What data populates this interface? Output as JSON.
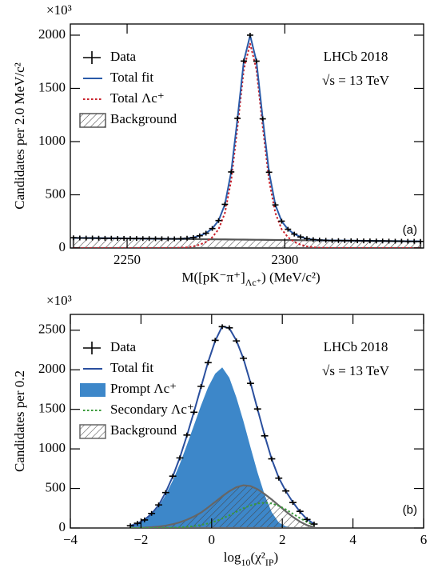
{
  "chart_data": [
    {
      "type": "line",
      "y_multiplier": "×10³",
      "ylabel": "Candidates per 2.0 MeV/c²",
      "xlabel": [
        {
          "text": "M([pK⁻π⁺]"
        },
        {
          "text": "Λc⁺",
          "shift": "sub"
        },
        {
          "text": ") (MeV/c²)"
        }
      ],
      "experiment_label": "LHCb 2018",
      "energy_label": "√s = 13 TeV",
      "panel_label": "(a)",
      "legend_position": "upper left",
      "xlim": [
        2232,
        2344
      ],
      "ylim": [
        0,
        2105
      ],
      "xticks": [
        2250,
        2300
      ],
      "yticks": [
        0,
        500,
        1000,
        1500,
        2000
      ],
      "x": [
        2233,
        2235,
        2237,
        2239,
        2241,
        2243,
        2245,
        2247,
        2249,
        2251,
        2253,
        2255,
        2257,
        2259,
        2261,
        2263,
        2265,
        2267,
        2269,
        2271,
        2273,
        2275,
        2277,
        2279,
        2281,
        2283,
        2285,
        2287,
        2289,
        2291,
        2293,
        2295,
        2297,
        2299,
        2301,
        2303,
        2305,
        2307,
        2309,
        2311,
        2313,
        2315,
        2317,
        2319,
        2321,
        2323,
        2325,
        2327,
        2329,
        2331,
        2333,
        2335,
        2337,
        2339,
        2341,
        2343
      ],
      "series": [
        {
          "name": "Data",
          "style": "points",
          "color": "#000000",
          "values": [
            96,
            94,
            93,
            94,
            92,
            91,
            92,
            90,
            90,
            89,
            89,
            88,
            88,
            87,
            87,
            86,
            86,
            88,
            92,
            98,
            115,
            139,
            183,
            258,
            410,
            715,
            1218,
            1757,
            2000,
            1756,
            1214,
            712,
            405,
            252,
            176,
            131,
            104,
            88,
            79,
            75,
            72,
            70,
            70,
            69,
            69,
            68,
            67,
            67,
            66,
            66,
            65,
            64,
            64,
            63,
            63,
            62
          ]
        },
        {
          "name": "Total fit",
          "style": "line",
          "color": "#2a5aa8",
          "values": [
            95,
            94.4,
            93.8,
            93.2,
            92.6,
            92,
            91.4,
            90.8,
            90.2,
            89.6,
            89,
            88.4,
            87.8,
            87.2,
            86.6,
            86,
            86.4,
            87.8,
            91.2,
            98.6,
            114,
            139.4,
            182.8,
            257.2,
            409.6,
            716,
            1217.4,
            1756.8,
            1998.2,
            1755.6,
            1215,
            712.4,
            404.8,
            251.2,
            175.6,
            131,
            104.4,
            87.8,
            79.2,
            74.6,
            72,
            70.4,
            69.8,
            69.2,
            68.6,
            68,
            67.4,
            66.8,
            66.2,
            65.6,
            65,
            64.4,
            63.8,
            63.2,
            62.6,
            62
          ]
        },
        {
          "name": "Total Λc⁺",
          "style": "dotted",
          "color": "#c8202a",
          "values": [
            0,
            0,
            0,
            0,
            0,
            0,
            0,
            0,
            0,
            0,
            0,
            0,
            0,
            0,
            0,
            0,
            1,
            3,
            7,
            15,
            31,
            57,
            101,
            176,
            329,
            636,
            1138,
            1678,
            1920,
            1678,
            1138,
            636,
            329,
            176,
            101,
            57,
            31,
            15,
            7,
            3,
            1,
            0,
            0,
            0,
            0,
            0,
            0,
            0,
            0,
            0,
            0,
            0,
            0,
            0,
            0,
            0
          ]
        },
        {
          "name": "Background",
          "style": "hatch",
          "color": "#555555",
          "values": [
            95,
            94.4,
            93.8,
            93.2,
            92.6,
            92,
            91.4,
            90.8,
            90.2,
            89.6,
            89,
            88.4,
            87.8,
            87.2,
            86.6,
            86,
            85.4,
            84.8,
            84.2,
            83.6,
            83,
            82.4,
            81.8,
            81.2,
            80.6,
            80,
            79.4,
            78.8,
            78.2,
            77.6,
            77,
            76.4,
            75.8,
            75.2,
            74.6,
            74,
            73.4,
            72.8,
            72.2,
            71.6,
            71,
            70.4,
            69.8,
            69.2,
            68.6,
            68,
            67.4,
            66.8,
            66.2,
            65.6,
            65,
            64.4,
            63.8,
            63.2,
            62.6,
            62
          ]
        }
      ]
    },
    {
      "type": "line",
      "y_multiplier": "×10³",
      "ylabel": "Candidates per 0.2",
      "xlabel": [
        {
          "text": "log"
        },
        {
          "text": "10",
          "shift": "sub"
        },
        {
          "text": "(χ²"
        },
        {
          "text": "IP",
          "shift": "sub"
        },
        {
          "text": ")"
        }
      ],
      "experiment_label": "LHCb 2018",
      "energy_label": "√s = 13 TeV",
      "panel_label": "(b)",
      "legend_position": "upper left",
      "xlim": [
        -4,
        6
      ],
      "ylim": [
        0,
        2700
      ],
      "xticks": [
        {
          "value": -4,
          "label": "−4"
        },
        {
          "value": -2,
          "label": "−2"
        },
        0,
        2,
        4,
        6
      ],
      "yticks": [
        0,
        500,
        1000,
        1500,
        2000,
        2500
      ],
      "x": [
        -2.3,
        -2.1,
        -1.9,
        -1.7,
        -1.5,
        -1.3,
        -1.1,
        -0.9,
        -0.7,
        -0.5,
        -0.3,
        -0.1,
        0.1,
        0.3,
        0.5,
        0.7,
        0.9,
        1.1,
        1.3,
        1.5,
        1.7,
        1.9,
        2.1,
        2.3,
        2.5,
        2.7,
        2.9
      ],
      "series": [
        {
          "name": "Data",
          "style": "points",
          "color": "#000000",
          "values": [
            28,
            60,
            102,
            184,
            292,
            448,
            655,
            886,
            1175,
            1463,
            1790,
            2090,
            2372,
            2545,
            2530,
            2365,
            2145,
            1828,
            1505,
            1165,
            874,
            630,
            468,
            322,
            210,
            108,
            50
          ]
        },
        {
          "name": "Total fit",
          "style": "line",
          "color": "#2a4f9e",
          "values": [
            30,
            57,
            105,
            180,
            289,
            452,
            652,
            890,
            1169,
            1469,
            1783,
            2098,
            2365,
            2550,
            2525,
            2370,
            2140,
            1835,
            1500,
            1170,
            870,
            635,
            465,
            325,
            206,
            110,
            52
          ]
        },
        {
          "name": "Prompt Λc⁺",
          "style": "fill",
          "color": "#3d87c9",
          "values": [
            30,
            55,
            100,
            170,
            270,
            420,
            600,
            810,
            1050,
            1300,
            1550,
            1780,
            1950,
            2030,
            1900,
            1650,
            1350,
            1020,
            700,
            420,
            200,
            70,
            20,
            5,
            1,
            0,
            0
          ]
        },
        {
          "name": "Secondary Λc⁺",
          "style": "dotted",
          "color": "#3a9a3a",
          "values": [
            0,
            0,
            0,
            0,
            1,
            2,
            4,
            8,
            14,
            24,
            38,
            58,
            85,
            120,
            160,
            205,
            250,
            285,
            310,
            320,
            310,
            280,
            235,
            180,
            125,
            75,
            40
          ]
        },
        {
          "name": "Background",
          "style": "hatch",
          "color": "#666666",
          "values": [
            0,
            2,
            5,
            10,
            18,
            30,
            48,
            72,
            105,
            145,
            195,
            260,
            330,
            400,
            465,
            515,
            540,
            530,
            490,
            430,
            360,
            285,
            210,
            140,
            80,
            35,
            12
          ]
        }
      ]
    }
  ]
}
